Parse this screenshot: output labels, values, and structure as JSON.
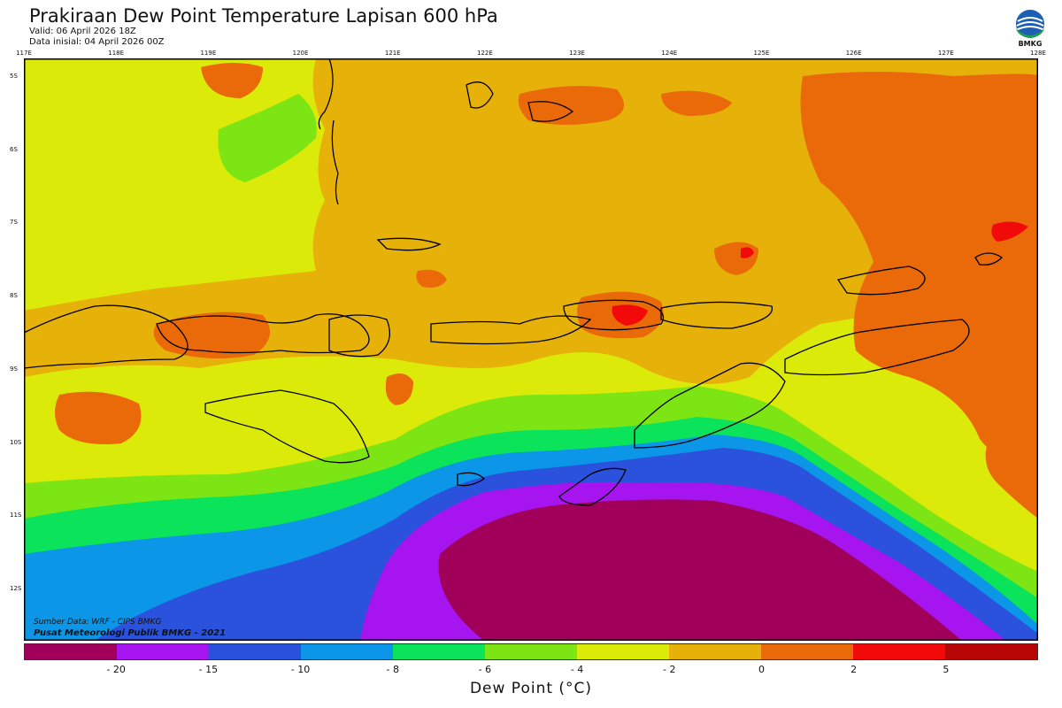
{
  "header": {
    "title": "Prakiraan Dew Point Temperature Lapisan 600 hPa",
    "valid": "Valid: 06 April 2026 18Z",
    "init": "Data inisial: 04 April 2026 00Z"
  },
  "logo": {
    "text": "BMKG",
    "icon": "bmkg-logo-icon"
  },
  "axes": {
    "lon_labels": [
      "117E",
      "118E",
      "119E",
      "120E",
      "121E",
      "122E",
      "123E",
      "124E",
      "125E",
      "126E",
      "127E",
      "128E"
    ],
    "lat_labels": [
      "5S",
      "6S",
      "7S",
      "8S",
      "9S",
      "10S",
      "11S",
      "12S"
    ]
  },
  "credits": {
    "source": "Sumber Data: WRF - CIPS BMKG",
    "center": "Pusat Meteorologi Publik BMKG - 2021"
  },
  "colorbar": {
    "title": "Dew Point (°C)",
    "ticks": [
      "- 20",
      "- 15",
      "- 10",
      "- 8",
      "- 6",
      "- 4",
      "- 2",
      "0",
      "2",
      "5"
    ],
    "colors": [
      "#a0005a",
      "#a614f0",
      "#2a52dd",
      "#0b96e8",
      "#0be35a",
      "#7ee514",
      "#dcea0a",
      "#e6b20a",
      "#ea6a0a",
      "#f20a0a",
      "#b80505"
    ]
  },
  "map_colors": {
    "lt20": "#a0005a",
    "m20_15": "#a614f0",
    "m15_10": "#2a52dd",
    "m10_8": "#0b96e8",
    "m8_6": "#0be35a",
    "m6_4": "#7ee514",
    "m4_2": "#dcea0a",
    "m2_0": "#e6b20a",
    "p0_2": "#ea6a0a",
    "p2_5": "#f20a0a"
  }
}
